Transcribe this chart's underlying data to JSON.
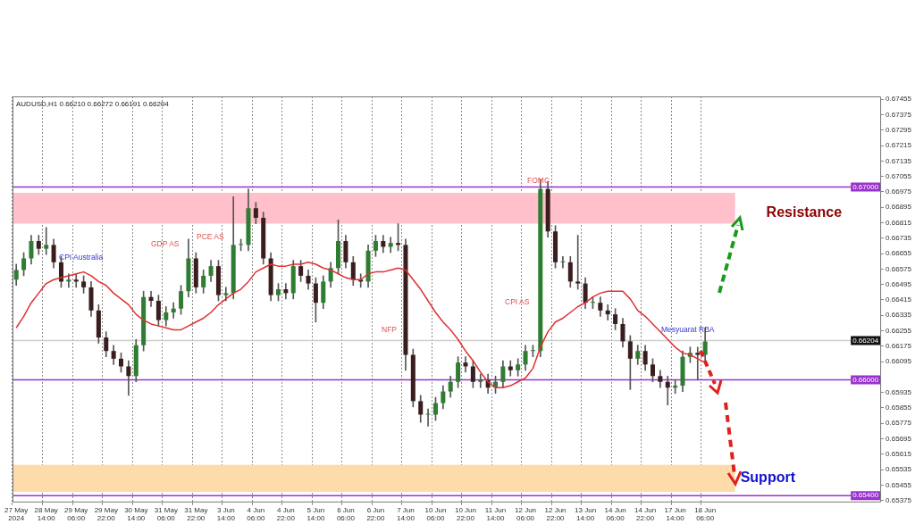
{
  "chart_data": {
    "type": "candlestick",
    "categories": [
      "27 May 2024",
      null,
      null,
      null,
      "28 May 14:00",
      null,
      null,
      null,
      "29 May 06:00",
      null,
      null,
      null,
      "29 May 22:00",
      null,
      null,
      null,
      "30 May 14:00",
      null,
      null,
      null,
      "31 May 06:00",
      null,
      null,
      null,
      "31 May 22:00",
      null,
      null,
      null,
      "3 Jun 14:00",
      null,
      null,
      null,
      "4 Jun 06:00",
      null,
      null,
      null,
      "4 Jun 22:00",
      null,
      null,
      null,
      "5 Jun 14:00",
      null,
      null,
      null,
      "6 Jun 06:00",
      null,
      null,
      null,
      "6 Jun 22:00",
      null,
      null,
      null,
      "7 Jun 14:00",
      null,
      null,
      null,
      "10 Jun 06:00",
      null,
      null,
      null,
      "10 Jun 22:00",
      null,
      null,
      null,
      "11 Jun 14:00",
      null,
      null,
      null,
      "12 Jun 06:00",
      null,
      null,
      null,
      "12 Jun 22:00",
      null,
      null,
      null,
      "13 Jun 14:00",
      null,
      null,
      null,
      "14 Jun 06:00",
      null,
      null,
      null,
      "14 Jun 22:00",
      null,
      null,
      null,
      "17 Jun 14:00",
      null,
      null,
      null,
      "18 Jun 06:00",
      null,
      null,
      null,
      null,
      null,
      null,
      null,
      null,
      null,
      null,
      null,
      null,
      null,
      null,
      null,
      null,
      null,
      null,
      null,
      null,
      null,
      null,
      null
    ],
    "ohlc": [
      [
        0.6652,
        0.666,
        0.6649,
        0.6657
      ],
      [
        0.6657,
        0.6666,
        0.6654,
        0.6663
      ],
      [
        0.6663,
        0.6675,
        0.666,
        0.6672
      ],
      [
        0.6672,
        0.6675,
        0.6665,
        0.6668
      ],
      [
        0.6668,
        0.6679,
        0.6665,
        0.667
      ],
      [
        0.667,
        0.6673,
        0.6658,
        0.6661
      ],
      [
        0.6661,
        0.6664,
        0.6648,
        0.6651
      ],
      [
        0.6651,
        0.6655,
        0.6648,
        0.6652
      ],
      [
        0.6652,
        0.6655,
        0.6648,
        0.6651
      ],
      [
        0.6651,
        0.6654,
        0.6645,
        0.6648
      ],
      [
        0.6648,
        0.6651,
        0.6633,
        0.6636
      ],
      [
        0.6636,
        0.6639,
        0.6619,
        0.6622
      ],
      [
        0.6622,
        0.6625,
        0.6612,
        0.6615
      ],
      [
        0.6615,
        0.6618,
        0.6608,
        0.6611
      ],
      [
        0.6611,
        0.6614,
        0.6604,
        0.6607
      ],
      [
        0.6607,
        0.661,
        0.6592,
        0.6602
      ],
      [
        0.6602,
        0.6621,
        0.6599,
        0.6618
      ],
      [
        0.6618,
        0.6646,
        0.6615,
        0.6643
      ],
      [
        0.6643,
        0.6646,
        0.6638,
        0.6641
      ],
      [
        0.6641,
        0.6644,
        0.6628,
        0.6631
      ],
      [
        0.6631,
        0.6638,
        0.6628,
        0.6635
      ],
      [
        0.6635,
        0.664,
        0.6632,
        0.6637
      ],
      [
        0.6637,
        0.6649,
        0.6634,
        0.6646
      ],
      [
        0.6646,
        0.6673,
        0.6643,
        0.6663
      ],
      [
        0.6663,
        0.6666,
        0.6645,
        0.6648
      ],
      [
        0.6648,
        0.6657,
        0.6645,
        0.6654
      ],
      [
        0.6654,
        0.6662,
        0.6651,
        0.6659
      ],
      [
        0.6659,
        0.6662,
        0.6641,
        0.6644
      ],
      [
        0.6644,
        0.6648,
        0.6641,
        0.6645
      ],
      [
        0.6645,
        0.6695,
        0.6642,
        0.667
      ],
      [
        0.667,
        0.6673,
        0.6667,
        0.667
      ],
      [
        0.667,
        0.6699,
        0.6667,
        0.6689
      ],
      [
        0.6689,
        0.6692,
        0.6681,
        0.6684
      ],
      [
        0.6684,
        0.6687,
        0.666,
        0.6663
      ],
      [
        0.6663,
        0.6666,
        0.6641,
        0.6644
      ],
      [
        0.6644,
        0.665,
        0.6641,
        0.6647
      ],
      [
        0.6647,
        0.665,
        0.6642,
        0.6645
      ],
      [
        0.6645,
        0.6662,
        0.6642,
        0.6659
      ],
      [
        0.6659,
        0.6662,
        0.6651,
        0.6654
      ],
      [
        0.6654,
        0.6657,
        0.6647,
        0.665
      ],
      [
        0.665,
        0.6653,
        0.663,
        0.664
      ],
      [
        0.664,
        0.6654,
        0.6637,
        0.6651
      ],
      [
        0.6651,
        0.6661,
        0.6648,
        0.6658
      ],
      [
        0.6658,
        0.6683,
        0.6655,
        0.6672
      ],
      [
        0.6672,
        0.6675,
        0.6658,
        0.6661
      ],
      [
        0.6661,
        0.6664,
        0.6649,
        0.6652
      ],
      [
        0.6652,
        0.6655,
        0.6648,
        0.6651
      ],
      [
        0.6651,
        0.667,
        0.6648,
        0.6667
      ],
      [
        0.6667,
        0.6675,
        0.6664,
        0.6672
      ],
      [
        0.6672,
        0.6675,
        0.6666,
        0.6669
      ],
      [
        0.6669,
        0.6674,
        0.6666,
        0.6671
      ],
      [
        0.6671,
        0.6681,
        0.6667,
        0.667
      ],
      [
        0.667,
        0.6673,
        0.6605,
        0.6613
      ],
      [
        0.6613,
        0.6616,
        0.6586,
        0.6589
      ],
      [
        0.6589,
        0.6592,
        0.6578,
        0.6582
      ],
      [
        0.6582,
        0.6585,
        0.6576,
        0.6582
      ],
      [
        0.6582,
        0.6591,
        0.6579,
        0.6588
      ],
      [
        0.6588,
        0.6597,
        0.6585,
        0.6594
      ],
      [
        0.6594,
        0.6602,
        0.6591,
        0.6599
      ],
      [
        0.6599,
        0.6612,
        0.6596,
        0.6609
      ],
      [
        0.6609,
        0.6612,
        0.6604,
        0.6607
      ],
      [
        0.6607,
        0.661,
        0.6596,
        0.6599
      ],
      [
        0.6599,
        0.6603,
        0.6596,
        0.66
      ],
      [
        0.66,
        0.6603,
        0.6593,
        0.6596
      ],
      [
        0.6596,
        0.6602,
        0.6593,
        0.6599
      ],
      [
        0.6599,
        0.661,
        0.6596,
        0.6607
      ],
      [
        0.6607,
        0.661,
        0.6602,
        0.6605
      ],
      [
        0.6605,
        0.6611,
        0.6602,
        0.6608
      ],
      [
        0.6608,
        0.6618,
        0.6605,
        0.6615
      ],
      [
        0.6615,
        0.6618,
        0.6612,
        0.6615
      ],
      [
        0.6615,
        0.6704,
        0.6612,
        0.6699
      ],
      [
        0.6699,
        0.6703,
        0.6674,
        0.6677
      ],
      [
        0.6677,
        0.668,
        0.6658,
        0.6661
      ],
      [
        0.6661,
        0.6664,
        0.6658,
        0.6661
      ],
      [
        0.6661,
        0.6664,
        0.6648,
        0.6651
      ],
      [
        0.6651,
        0.6675,
        0.6647,
        0.665
      ],
      [
        0.665,
        0.6653,
        0.6637,
        0.664
      ],
      [
        0.664,
        0.6643,
        0.6637,
        0.664
      ],
      [
        0.664,
        0.6643,
        0.6633,
        0.6636
      ],
      [
        0.6636,
        0.6639,
        0.6631,
        0.6634
      ],
      [
        0.6634,
        0.6637,
        0.6626,
        0.6629
      ],
      [
        0.6629,
        0.6632,
        0.6617,
        0.662
      ],
      [
        0.662,
        0.6623,
        0.6595,
        0.6611
      ],
      [
        0.6611,
        0.6618,
        0.6608,
        0.6615
      ],
      [
        0.6615,
        0.6618,
        0.6605,
        0.6608
      ],
      [
        0.6608,
        0.6611,
        0.6599,
        0.6602
      ],
      [
        0.6602,
        0.6605,
        0.6596,
        0.6599
      ],
      [
        0.6599,
        0.6602,
        0.6587,
        0.6596
      ],
      [
        0.6596,
        0.66,
        0.6593,
        0.6597
      ],
      [
        0.6597,
        0.6615,
        0.6594,
        0.6612
      ],
      [
        0.6612,
        0.6617,
        0.6609,
        0.6614
      ],
      [
        0.6614,
        0.6617,
        0.66,
        0.6613
      ],
      [
        0.6613,
        0.6627,
        0.661,
        0.662
      ],
      null,
      null,
      null,
      null,
      null,
      null,
      null,
      null,
      null,
      null,
      null,
      null,
      null,
      null,
      null,
      null,
      null,
      null,
      null,
      null,
      null,
      null,
      null
    ],
    "series": [
      {
        "type": "line",
        "color": "#e03030",
        "values": [
          0.6627,
          0.6633,
          0.664,
          0.6645,
          0.665,
          0.6652,
          0.6653,
          0.6654,
          0.6655,
          0.6656,
          0.6654,
          0.6651,
          0.6649,
          0.6645,
          0.6642,
          0.6639,
          0.6634,
          0.6631,
          0.6629,
          0.6628,
          0.6627,
          0.6626,
          0.6626,
          0.6628,
          0.663,
          0.6632,
          0.6635,
          0.6639,
          0.6642,
          0.6645,
          0.6647,
          0.6651,
          0.6656,
          0.6658,
          0.666,
          0.6659,
          0.6659,
          0.666,
          0.666,
          0.6661,
          0.666,
          0.6658,
          0.6657,
          0.6655,
          0.6653,
          0.6652,
          0.6652,
          0.6655,
          0.6656,
          0.6656,
          0.6657,
          0.6658,
          0.6657,
          0.6652,
          0.6647,
          0.6641,
          0.6635,
          0.663,
          0.6626,
          0.6621,
          0.6615,
          0.661,
          0.6604,
          0.6599,
          0.6596,
          0.6596,
          0.6597,
          0.6599,
          0.6601,
          0.6606,
          0.6617,
          0.6625,
          0.663,
          0.6632,
          0.6635,
          0.6638,
          0.664,
          0.6643,
          0.6645,
          0.6646,
          0.6646,
          0.6646,
          0.6642,
          0.6636,
          0.6633,
          0.6629,
          0.6625,
          0.6621,
          0.6617,
          0.6614,
          0.6613,
          0.6611,
          0.6609,
          null,
          null,
          null,
          null,
          null,
          null,
          null,
          null,
          null,
          null,
          null,
          null,
          null,
          null,
          null,
          null,
          null,
          null,
          null,
          null,
          null,
          null,
          null
        ]
      }
    ],
    "ylim": [
      0.65365,
      0.6747
    ],
    "yticks": [
      0.65375,
      0.65455,
      0.65535,
      0.65615,
      0.65695,
      0.65775,
      0.65855,
      0.65935,
      0.66095,
      0.66175,
      0.66255,
      0.66335,
      0.66415,
      0.66495,
      0.66575,
      0.66655,
      0.66735,
      0.66815,
      0.66895,
      0.66975,
      0.67055,
      0.67135,
      0.67215,
      0.67295,
      0.67375,
      0.67455
    ],
    "grid": "x",
    "marker": "none",
    "line_style": "solid",
    "ref_lines": [
      {
        "axis": "y",
        "value": 0.67,
        "label": "0.67000",
        "color": "#9933cc"
      },
      {
        "axis": "y",
        "value": 0.66204,
        "label": "0.66204",
        "color": "#cfcfcf"
      },
      {
        "axis": "y",
        "value": 0.66,
        "label": "0.66000",
        "color": "#9933cc"
      },
      {
        "axis": "y",
        "value": 0.654,
        "label": "0.65400",
        "color": "#9933cc"
      }
    ],
    "bands": [
      {
        "axis": "y",
        "from": 0.6681,
        "to": 0.6697,
        "label": "Resistance",
        "color": "#ffc0cb"
      },
      {
        "axis": "y",
        "from": 0.6542,
        "to": 0.6556,
        "label": "Support",
        "color": "#fddcaa"
      }
    ],
    "annotations": [
      "AUDUSD,H1 0.66210 0.66272 0.66191 0.66204",
      "CPI Australia",
      "GDP AS",
      "PCE AS",
      "NFP",
      "CPI AS",
      "FOMC",
      "Mesyuarat RBA"
    ]
  }
}
